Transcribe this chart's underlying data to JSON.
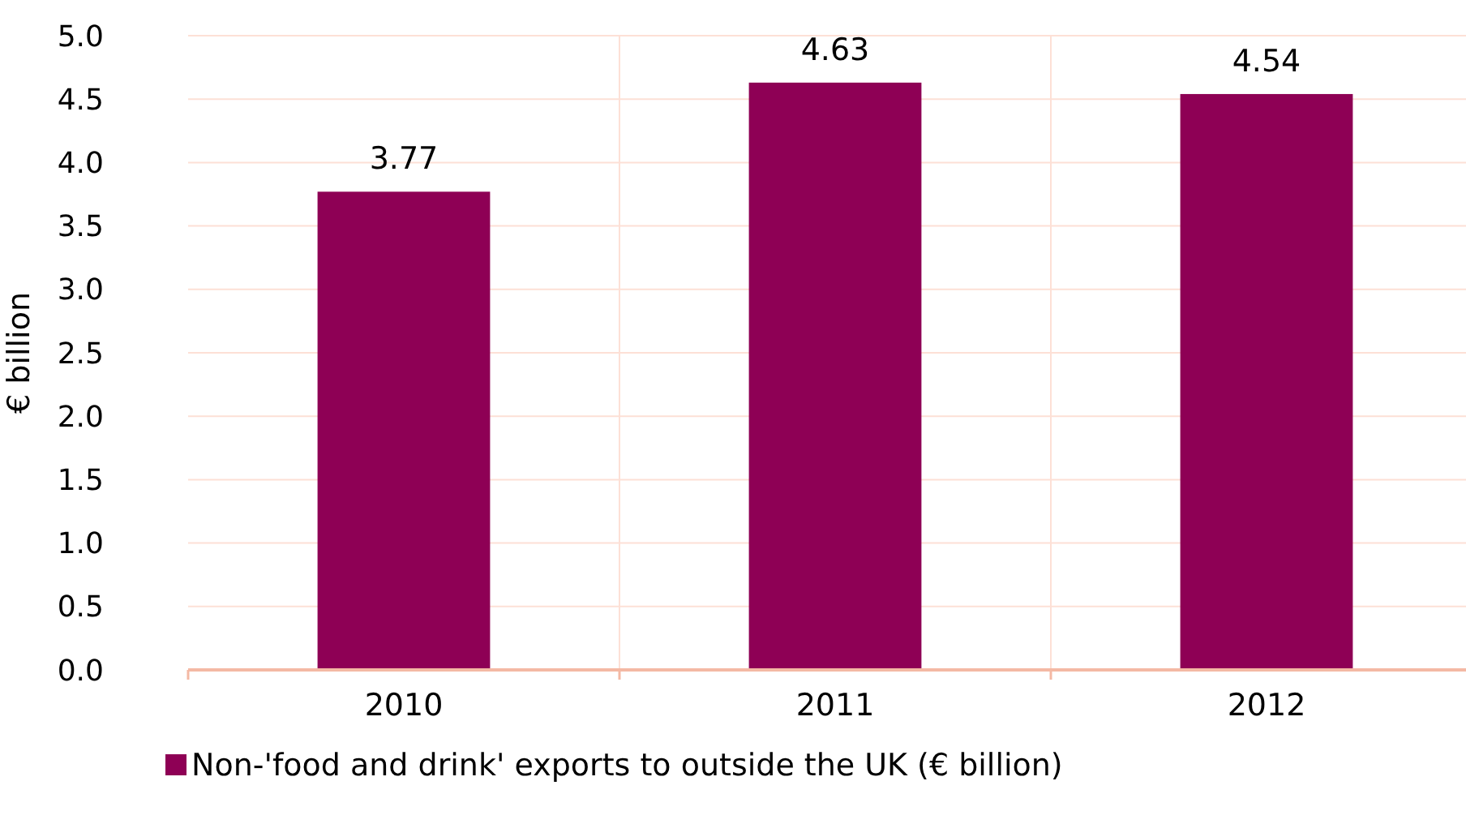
{
  "chart_data": {
    "type": "bar",
    "ylabel": "€ billion",
    "categories": [
      "2010",
      "2011",
      "2012"
    ],
    "series": [
      {
        "name": "Non-'food and drink' exports to outside the UK (€ billion)",
        "color": "#8e0055",
        "values": [
          3.77,
          4.63,
          4.54
        ]
      }
    ],
    "ylim": [
      0,
      5
    ],
    "yticks": [
      "0.0",
      "0.5",
      "1.0",
      "1.5",
      "2.0",
      "2.5",
      "3.0",
      "3.5",
      "4.0",
      "4.5",
      "5.0"
    ],
    "grid": true,
    "legend": "bottom",
    "data_labels": true
  }
}
